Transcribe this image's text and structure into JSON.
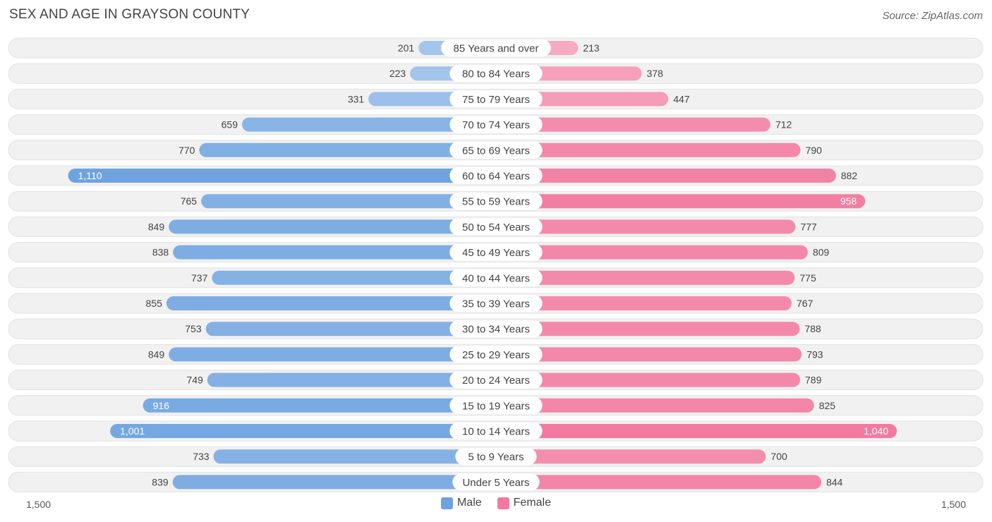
{
  "chart_data": {
    "type": "bar",
    "orientation": "horizontal-population-pyramid",
    "title": "SEX AND AGE IN GRAYSON COUNTY",
    "source": "Source: ZipAtlas.com",
    "categories": [
      "85 Years and over",
      "80 to 84 Years",
      "75 to 79 Years",
      "70 to 74 Years",
      "65 to 69 Years",
      "60 to 64 Years",
      "55 to 59 Years",
      "50 to 54 Years",
      "45 to 49 Years",
      "40 to 44 Years",
      "35 to 39 Years",
      "30 to 34 Years",
      "25 to 29 Years",
      "20 to 24 Years",
      "15 to 19 Years",
      "10 to 14 Years",
      "5 to 9 Years",
      "Under 5 Years"
    ],
    "series": [
      {
        "name": "Male",
        "color": "#6fa3e0",
        "values": [
          201,
          223,
          331,
          659,
          770,
          1110,
          765,
          849,
          838,
          737,
          855,
          753,
          849,
          749,
          916,
          1001,
          733,
          839
        ],
        "labels": [
          "201",
          "223",
          "331",
          "659",
          "770",
          "1,110",
          "765",
          "849",
          "838",
          "737",
          "855",
          "753",
          "849",
          "749",
          "916",
          "1,001",
          "733",
          "839"
        ]
      },
      {
        "name": "Female",
        "color": "#f27aa0",
        "values": [
          213,
          378,
          447,
          712,
          790,
          882,
          958,
          777,
          809,
          775,
          767,
          788,
          793,
          789,
          825,
          1040,
          700,
          844
        ],
        "labels": [
          "213",
          "378",
          "447",
          "712",
          "790",
          "882",
          "958",
          "777",
          "809",
          "775",
          "767",
          "788",
          "793",
          "789",
          "825",
          "1,040",
          "700",
          "844"
        ]
      }
    ],
    "axis": {
      "max": 1500,
      "left_label": "1,500",
      "right_label": "1,500"
    },
    "legend": {
      "placement": "bottom-center"
    }
  }
}
